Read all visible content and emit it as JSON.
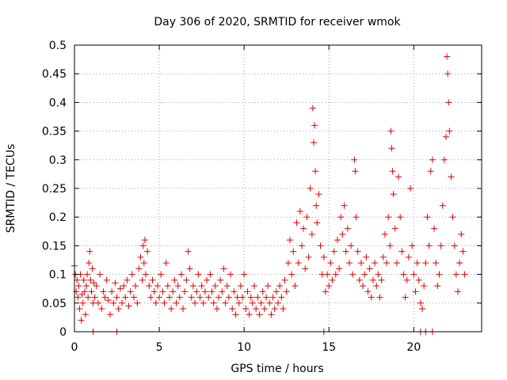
{
  "chart_data": {
    "type": "scatter",
    "title": "Day 306 of 2020, SRMTID for receiver wmok",
    "xlabel": "GPS time / hours",
    "ylabel": "SRMTID / TECUs",
    "xlim": [
      0,
      24
    ],
    "ylim": [
      0,
      0.5
    ],
    "x_ticks": [
      0,
      5,
      10,
      15,
      20
    ],
    "y_ticks": [
      0,
      0.05,
      0.1,
      0.15,
      0.2,
      0.25,
      0.3,
      0.35,
      0.4,
      0.45,
      0.5
    ],
    "x_tick_labels": [
      "0",
      "5",
      "10",
      "15",
      "20"
    ],
    "y_tick_labels": [
      "0",
      "0.05",
      "0.1",
      "0.15",
      "0.2",
      "0.25",
      "0.3",
      "0.35",
      "0.4",
      "0.45",
      "0.5"
    ],
    "grid": true,
    "marker": "+",
    "color": "#e00000",
    "series": [
      {
        "name": "SRMTID",
        "points": [
          [
            0.0,
            0.115
          ],
          [
            0.05,
            0.1
          ],
          [
            0.1,
            0.07
          ],
          [
            0.15,
            0.09
          ],
          [
            0.2,
            0.06
          ],
          [
            0.25,
            0.08
          ],
          [
            0.3,
            0.04
          ],
          [
            0.35,
            0.1
          ],
          [
            0.4,
            0.02
          ],
          [
            0.45,
            0.065
          ],
          [
            0.5,
            0.05
          ],
          [
            0.55,
            0.09
          ],
          [
            0.6,
            0.07
          ],
          [
            0.65,
            0.03
          ],
          [
            0.7,
            0.08
          ],
          [
            0.75,
            0.1
          ],
          [
            0.8,
            0.06
          ],
          [
            0.85,
            0.12
          ],
          [
            0.9,
            0.14
          ],
          [
            0.95,
            0.09
          ],
          [
            1.0,
            0.07
          ],
          [
            1.05,
            0.11
          ],
          [
            1.1,
            0.05
          ],
          [
            1.15,
            0.085
          ],
          [
            1.2,
            0.06
          ],
          [
            1.3,
            0.08
          ],
          [
            1.4,
            0.05
          ],
          [
            1.5,
            0.1
          ],
          [
            1.6,
            0.04
          ],
          [
            1.7,
            0.07
          ],
          [
            1.8,
            0.06
          ],
          [
            1.9,
            0.09
          ],
          [
            2.0,
            0.055
          ],
          [
            2.1,
            0.03
          ],
          [
            2.2,
            0.07
          ],
          [
            2.3,
            0.05
          ],
          [
            2.4,
            0.085
          ],
          [
            2.5,
            0.06
          ],
          [
            2.6,
            0.04
          ],
          [
            2.7,
            0.075
          ],
          [
            2.8,
            0.05
          ],
          [
            2.9,
            0.08
          ],
          [
            3.0,
            0.06
          ],
          [
            3.1,
            0.09
          ],
          [
            3.2,
            0.045
          ],
          [
            3.3,
            0.07
          ],
          [
            3.4,
            0.1
          ],
          [
            3.5,
            0.06
          ],
          [
            3.6,
            0.08
          ],
          [
            3.7,
            0.05
          ],
          [
            3.8,
            0.11
          ],
          [
            3.9,
            0.13
          ],
          [
            4.0,
            0.09
          ],
          [
            4.05,
            0.15
          ],
          [
            4.1,
            0.12
          ],
          [
            4.15,
            0.16
          ],
          [
            4.2,
            0.1
          ],
          [
            4.3,
            0.14
          ],
          [
            4.4,
            0.08
          ],
          [
            4.5,
            0.06
          ],
          [
            4.6,
            0.09
          ],
          [
            4.7,
            0.07
          ],
          [
            4.8,
            0.05
          ],
          [
            4.9,
            0.08
          ],
          [
            5.0,
            0.06
          ],
          [
            5.1,
            0.1
          ],
          [
            5.2,
            0.07
          ],
          [
            5.3,
            0.05
          ],
          [
            5.4,
            0.12
          ],
          [
            5.5,
            0.08
          ],
          [
            5.6,
            0.06
          ],
          [
            5.7,
            0.04
          ],
          [
            5.8,
            0.07
          ],
          [
            5.9,
            0.09
          ],
          [
            6.0,
            0.05
          ],
          [
            6.1,
            0.08
          ],
          [
            6.2,
            0.06
          ],
          [
            6.3,
            0.1
          ],
          [
            6.4,
            0.04
          ],
          [
            6.5,
            0.07
          ],
          [
            6.6,
            0.09
          ],
          [
            6.7,
            0.14
          ],
          [
            6.8,
            0.11
          ],
          [
            6.9,
            0.06
          ],
          [
            7.0,
            0.08
          ],
          [
            7.1,
            0.05
          ],
          [
            7.2,
            0.07
          ],
          [
            7.3,
            0.1
          ],
          [
            7.4,
            0.06
          ],
          [
            7.5,
            0.08
          ],
          [
            7.6,
            0.05
          ],
          [
            7.7,
            0.07
          ],
          [
            7.8,
            0.09
          ],
          [
            7.9,
            0.06
          ],
          [
            8.0,
            0.1
          ],
          [
            8.1,
            0.07
          ],
          [
            8.2,
            0.05
          ],
          [
            8.3,
            0.08
          ],
          [
            8.4,
            0.04
          ],
          [
            8.5,
            0.06
          ],
          [
            8.6,
            0.09
          ],
          [
            8.7,
            0.07
          ],
          [
            8.8,
            0.11
          ],
          [
            8.9,
            0.05
          ],
          [
            9.0,
            0.08
          ],
          [
            9.1,
            0.06
          ],
          [
            9.2,
            0.1
          ],
          [
            9.3,
            0.04
          ],
          [
            9.4,
            0.07
          ],
          [
            9.5,
            0.03
          ],
          [
            9.6,
            0.06
          ],
          [
            9.7,
            0.05
          ],
          [
            9.8,
            0.08
          ],
          [
            9.9,
            0.06
          ],
          [
            10.0,
            0.1
          ],
          [
            10.1,
            0.04
          ],
          [
            10.2,
            0.07
          ],
          [
            10.3,
            0.03
          ],
          [
            10.4,
            0.06
          ],
          [
            10.5,
            0.05
          ],
          [
            10.6,
            0.08
          ],
          [
            10.7,
            0.04
          ],
          [
            10.8,
            0.06
          ],
          [
            10.9,
            0.03
          ],
          [
            11.0,
            0.05
          ],
          [
            11.1,
            0.07
          ],
          [
            11.2,
            0.04
          ],
          [
            11.3,
            0.06
          ],
          [
            11.4,
            0.08
          ],
          [
            11.5,
            0.05
          ],
          [
            11.6,
            0.03
          ],
          [
            11.7,
            0.06
          ],
          [
            11.8,
            0.04
          ],
          [
            11.9,
            0.07
          ],
          [
            12.0,
            0.05
          ],
          [
            12.1,
            0.08
          ],
          [
            12.2,
            0.06
          ],
          [
            12.3,
            0.04
          ],
          [
            12.4,
            0.09
          ],
          [
            12.5,
            0.07
          ],
          [
            12.6,
            0.12
          ],
          [
            12.7,
            0.16
          ],
          [
            12.8,
            0.1
          ],
          [
            12.9,
            0.14
          ],
          [
            13.0,
            0.08
          ],
          [
            13.1,
            0.19
          ],
          [
            13.2,
            0.12
          ],
          [
            13.3,
            0.21
          ],
          [
            13.4,
            0.15
          ],
          [
            13.5,
            0.18
          ],
          [
            13.6,
            0.11
          ],
          [
            13.7,
            0.2
          ],
          [
            13.8,
            0.13
          ],
          [
            13.9,
            0.25
          ],
          [
            14.0,
            0.17
          ],
          [
            14.05,
            0.39
          ],
          [
            14.1,
            0.33
          ],
          [
            14.15,
            0.36
          ],
          [
            14.2,
            0.28
          ],
          [
            14.25,
            0.22
          ],
          [
            14.3,
            0.19
          ],
          [
            14.4,
            0.24
          ],
          [
            14.5,
            0.15
          ],
          [
            14.6,
            0.1
          ],
          [
            14.7,
            0.13
          ],
          [
            14.8,
            0.07
          ],
          [
            14.9,
            0.1
          ],
          [
            15.0,
            0.08
          ],
          [
            15.1,
            0.12
          ],
          [
            15.2,
            0.09
          ],
          [
            15.3,
            0.14
          ],
          [
            15.4,
            0.1
          ],
          [
            15.5,
            0.16
          ],
          [
            15.6,
            0.11
          ],
          [
            15.7,
            0.2
          ],
          [
            15.8,
            0.17
          ],
          [
            15.9,
            0.22
          ],
          [
            16.0,
            0.14
          ],
          [
            16.1,
            0.18
          ],
          [
            16.2,
            0.12
          ],
          [
            16.3,
            0.15
          ],
          [
            16.4,
            0.1
          ],
          [
            16.5,
            0.3
          ],
          [
            16.55,
            0.28
          ],
          [
            16.6,
            0.2
          ],
          [
            16.7,
            0.14
          ],
          [
            16.8,
            0.09
          ],
          [
            16.9,
            0.12
          ],
          [
            17.0,
            0.08
          ],
          [
            17.1,
            0.1
          ],
          [
            17.2,
            0.13
          ],
          [
            17.3,
            0.07
          ],
          [
            17.4,
            0.11
          ],
          [
            17.5,
            0.06
          ],
          [
            17.6,
            0.09
          ],
          [
            17.7,
            0.12
          ],
          [
            17.8,
            0.08
          ],
          [
            17.9,
            0.1
          ],
          [
            18.0,
            0.06
          ],
          [
            18.1,
            0.09
          ],
          [
            18.2,
            0.13
          ],
          [
            18.3,
            0.17
          ],
          [
            18.4,
            0.12
          ],
          [
            18.5,
            0.2
          ],
          [
            18.6,
            0.15
          ],
          [
            18.65,
            0.35
          ],
          [
            18.7,
            0.32
          ],
          [
            18.75,
            0.28
          ],
          [
            18.8,
            0.24
          ],
          [
            18.9,
            0.18
          ],
          [
            19.0,
            0.12
          ],
          [
            19.1,
            0.27
          ],
          [
            19.2,
            0.2
          ],
          [
            19.3,
            0.14
          ],
          [
            19.4,
            0.1
          ],
          [
            19.5,
            0.06
          ],
          [
            19.6,
            0.09
          ],
          [
            19.7,
            0.13
          ],
          [
            19.8,
            0.25
          ],
          [
            19.9,
            0.15
          ],
          [
            20.0,
            0.1
          ],
          [
            20.1,
            0.07
          ],
          [
            20.2,
            0.12
          ],
          [
            20.3,
            0.09
          ],
          [
            20.4,
            0.05
          ],
          [
            20.5,
            0.04
          ],
          [
            20.6,
            0.08
          ],
          [
            20.7,
            0.12
          ],
          [
            20.8,
            0.2
          ],
          [
            20.9,
            0.15
          ],
          [
            21.0,
            0.28
          ],
          [
            21.1,
            0.3
          ],
          [
            21.2,
            0.18
          ],
          [
            21.3,
            0.12
          ],
          [
            21.4,
            0.08
          ],
          [
            21.5,
            0.1
          ],
          [
            21.6,
            0.15
          ],
          [
            21.7,
            0.22
          ],
          [
            21.8,
            0.3
          ],
          [
            21.9,
            0.34
          ],
          [
            21.95,
            0.48
          ],
          [
            22.0,
            0.45
          ],
          [
            22.05,
            0.4
          ],
          [
            22.1,
            0.35
          ],
          [
            22.2,
            0.27
          ],
          [
            22.3,
            0.2
          ],
          [
            22.4,
            0.15
          ],
          [
            22.5,
            0.1
          ],
          [
            22.6,
            0.07
          ],
          [
            22.7,
            0.12
          ],
          [
            22.8,
            0.17
          ],
          [
            22.9,
            0.14
          ],
          [
            23.0,
            0.1
          ]
        ]
      },
      {
        "name": "zero-level markers",
        "points": [
          [
            1.1,
            0.0
          ],
          [
            2.5,
            0.0
          ],
          [
            14.7,
            0.0
          ],
          [
            20.4,
            0.0
          ],
          [
            20.7,
            0.0
          ],
          [
            21.1,
            0.0
          ]
        ]
      }
    ]
  }
}
